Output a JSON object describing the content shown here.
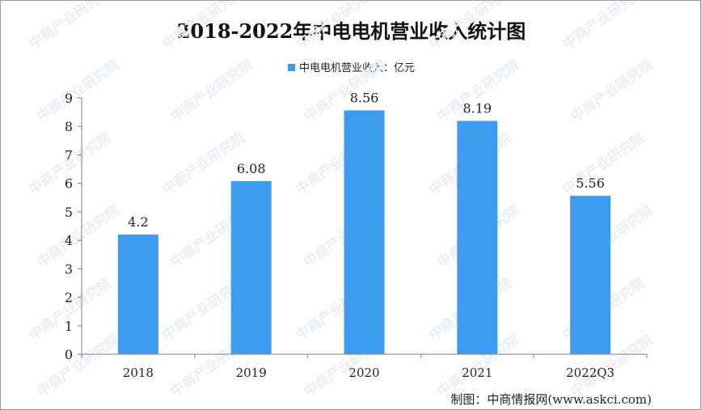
{
  "title": "2018-2022年中电电机营业收入统计图",
  "legend": {
    "label": "中电电机营业收入：亿元"
  },
  "source": "制图：中商情报网(www.askci.com)",
  "watermark": "中商产业研究院",
  "colors": {
    "bar": "#3d9cf0",
    "axis": "#808080",
    "text": "#222222"
  },
  "chart_data": {
    "type": "bar",
    "categories": [
      "2018",
      "2019",
      "2020",
      "2021",
      "2022Q3"
    ],
    "series": [
      {
        "name": "中电电机营业收入：亿元",
        "values": [
          4.2,
          6.08,
          8.56,
          8.19,
          5.56
        ]
      }
    ],
    "data_labels": [
      "4.2",
      "6.08",
      "8.56",
      "8.19",
      "5.56"
    ],
    "yticks": [
      0,
      1,
      2,
      3,
      4,
      5,
      6,
      7,
      8,
      9
    ],
    "ylim": [
      0,
      9
    ],
    "grid": false,
    "legend_position": "top-center",
    "title": "2018-2022年中电电机营业收入统计图",
    "xlabel": "",
    "ylabel": ""
  }
}
